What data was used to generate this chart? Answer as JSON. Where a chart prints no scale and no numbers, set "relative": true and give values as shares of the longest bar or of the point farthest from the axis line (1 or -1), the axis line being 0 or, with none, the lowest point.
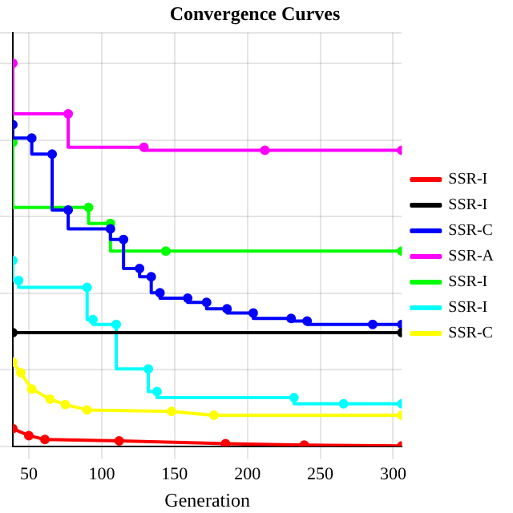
{
  "chart_data": {
    "type": "step",
    "title": "Convergence Curves",
    "xlabel": "Generation",
    "relative": true,
    "xlim": [
      39,
      306
    ],
    "xticks": [
      50,
      100,
      150,
      200,
      250,
      300
    ],
    "grid": true,
    "legend": "right",
    "marker": "circle",
    "series": [
      {
        "name": "SSR-I",
        "color": "#ff0000",
        "type": "line",
        "x": [
          39,
          50,
          61,
          112,
          185,
          239,
          306
        ],
        "values": [
          0.046,
          0.028,
          0.018,
          0.014,
          0.007,
          0.003,
          0.001
        ]
      },
      {
        "name": "SSR-I",
        "color": "#000000",
        "x": [
          39,
          306
        ],
        "values": [
          0.297,
          0.297
        ]
      },
      {
        "name": "SSR-C",
        "color": "#0000ff",
        "x": [
          39,
          52,
          66,
          77,
          106,
          115,
          126,
          134,
          140,
          159,
          172,
          186,
          204,
          230,
          241,
          286,
          306
        ],
        "values": [
          0.84,
          0.805,
          0.763,
          0.617,
          0.568,
          0.54,
          0.464,
          0.443,
          0.401,
          0.387,
          0.376,
          0.359,
          0.348,
          0.334,
          0.327,
          0.318,
          0.318
        ]
      },
      {
        "name": "SSR-A",
        "color": "#ff00ff",
        "x": [
          39,
          77,
          129,
          212,
          306
        ],
        "values": [
          1.0,
          0.868,
          0.781,
          0.773,
          0.773
        ]
      },
      {
        "name": "SSR-I",
        "color": "#00ff00",
        "x": [
          39,
          91,
          106,
          144,
          306
        ],
        "values": [
          0.794,
          0.624,
          0.582,
          0.51,
          0.51
        ]
      },
      {
        "name": "SSR-I",
        "color": "#00ffff",
        "x": [
          39,
          43,
          90,
          94,
          110,
          132,
          138,
          232,
          266,
          306
        ],
        "values": [
          0.485,
          0.433,
          0.415,
          0.331,
          0.318,
          0.202,
          0.143,
          0.127,
          0.111,
          0.111
        ]
      },
      {
        "name": "SSR-C",
        "color": "#ffff00",
        "type": "line",
        "x": [
          39,
          44.5,
          52,
          64.5,
          75,
          90,
          148,
          177,
          306
        ],
        "values": [
          0.22,
          0.192,
          0.15,
          0.123,
          0.109,
          0.095,
          0.091,
          0.081,
          0.081
        ]
      }
    ]
  }
}
